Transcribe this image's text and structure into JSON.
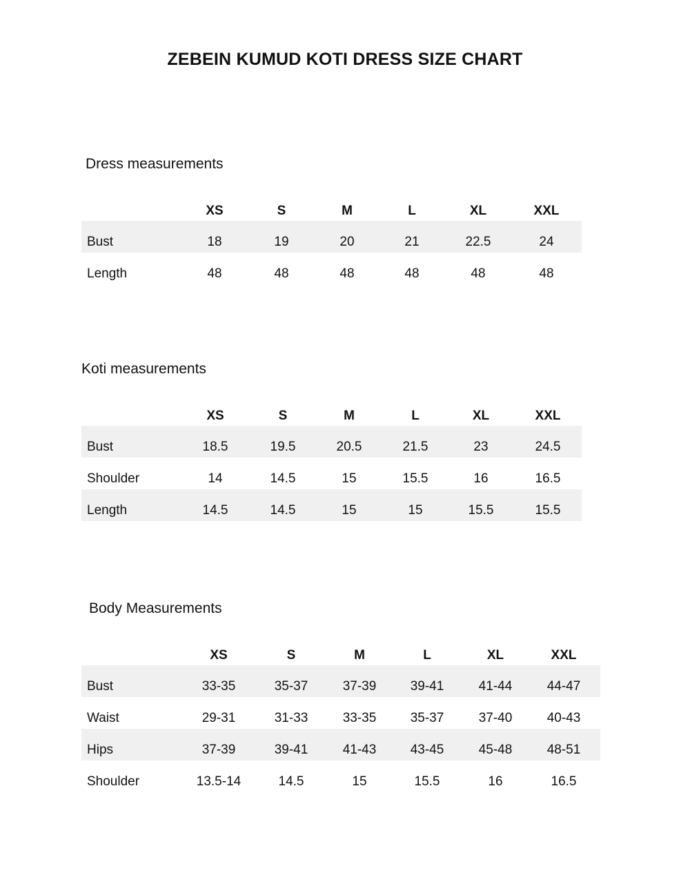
{
  "title": "ZEBEIN KUMUD KOTI DRESS SIZE CHART",
  "tables": [
    {
      "heading": "Dress measurements",
      "sizes": [
        "XS",
        "S",
        "M",
        "L",
        "XL",
        "XXL"
      ],
      "rows": [
        {
          "label": "Bust",
          "values": [
            "18",
            "19",
            "20",
            "21",
            "22.5",
            "24"
          ]
        },
        {
          "label": "Length",
          "values": [
            "48",
            "48",
            "48",
            "48",
            "48",
            "48"
          ]
        }
      ]
    },
    {
      "heading": "Koti measurements",
      "sizes": [
        "XS",
        "S",
        "M",
        "L",
        "XL",
        "XXL"
      ],
      "rows": [
        {
          "label": "Bust",
          "values": [
            "18.5",
            "19.5",
            "20.5",
            "21.5",
            "23",
            "24.5"
          ]
        },
        {
          "label": "Shoulder",
          "values": [
            "14",
            "14.5",
            "15",
            "15.5",
            "16",
            "16.5"
          ]
        },
        {
          "label": "Length",
          "values": [
            "14.5",
            "14.5",
            "15",
            "15",
            "15.5",
            "15.5"
          ]
        }
      ]
    },
    {
      "heading": "Body Measurements",
      "sizes": [
        "XS",
        "S",
        "M",
        "L",
        "XL",
        "XXL"
      ],
      "rows": [
        {
          "label": "Bust",
          "values": [
            "33-35",
            "35-37",
            "37-39",
            "39-41",
            "41-44",
            "44-47"
          ]
        },
        {
          "label": "Waist",
          "values": [
            "29-31",
            "31-33",
            "33-35",
            "35-37",
            "37-40",
            "40-43"
          ]
        },
        {
          "label": "Hips",
          "values": [
            "37-39",
            "39-41",
            "41-43",
            "43-45",
            "45-48",
            "48-51"
          ]
        },
        {
          "label": "Shoulder",
          "values": [
            "13.5-14",
            "14.5",
            "15",
            "15.5",
            "16",
            "16.5"
          ]
        }
      ]
    }
  ],
  "colors": {
    "row_shade": "#f0f0f0",
    "text": "#111111"
  }
}
